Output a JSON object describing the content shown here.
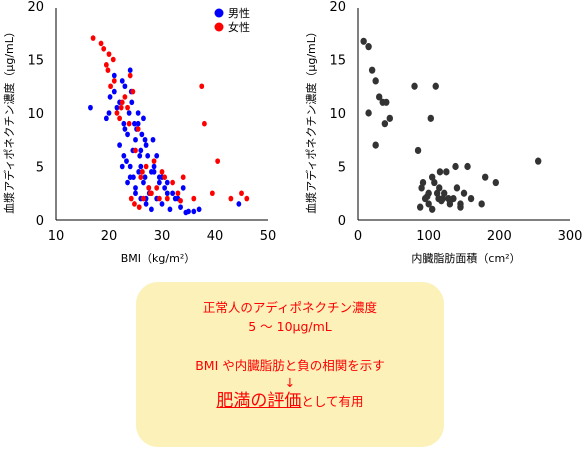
{
  "chart_data": [
    {
      "type": "scatter",
      "xlabel": "BMI（kg/m²）",
      "ylabel": "血漿アディポネクチン濃度（μg/mL）",
      "xlim": [
        10,
        50
      ],
      "ylim": [
        0,
        20
      ],
      "xticks": [
        10,
        20,
        30,
        40,
        50
      ],
      "yticks": [
        0,
        5,
        10,
        15,
        20
      ],
      "xtick_labels": [
        "10",
        "20",
        "30",
        "40",
        "50"
      ],
      "ytick_labels": [
        "0",
        "5",
        "10",
        "15",
        "20"
      ],
      "legend_position": "top-right",
      "series": [
        {
          "name": "男性",
          "color": "#0000ff",
          "x": [
            16.5,
            19.5,
            20.0,
            20.2,
            21.0,
            21.5,
            22.0,
            22.5,
            22.8,
            23.0,
            23.5,
            23.8,
            24.0,
            24.3,
            24.5,
            24.8,
            25.0,
            25.2,
            25.5,
            25.8,
            26.0,
            26.2,
            26.5,
            26.8,
            27.0,
            27.3,
            27.5,
            28.0,
            28.3,
            28.5,
            29.0,
            29.5,
            30.0,
            30.5,
            31.0,
            32.0,
            33.0,
            34.0,
            35.0,
            22.0,
            22.8,
            23.3,
            24.0,
            24.6,
            25.0,
            25.6,
            26.0,
            26.5,
            27.0,
            27.6,
            28.0,
            29.0,
            30.0,
            31.5,
            33.5,
            36.0,
            37.0,
            44.5,
            21.0,
            23.0,
            24.2,
            25.5,
            26.8,
            28.5,
            23.5,
            25.0,
            26.0,
            24.0,
            22.5,
            27.0,
            29.5,
            31.0,
            32.5,
            34.5
          ],
          "y": [
            10.5,
            9.5,
            10.0,
            11.5,
            12.0,
            10.5,
            11.0,
            13.0,
            9.0,
            12.5,
            8.0,
            10.0,
            14.0,
            11.0,
            6.5,
            9.0,
            7.5,
            8.5,
            10.0,
            6.0,
            5.0,
            8.0,
            9.5,
            4.0,
            7.0,
            6.0,
            3.0,
            4.5,
            7.5,
            5.0,
            6.0,
            3.5,
            4.0,
            3.0,
            3.5,
            2.5,
            2.0,
            3.0,
            0.8,
            7.0,
            6.0,
            5.5,
            5.0,
            4.0,
            3.0,
            4.5,
            2.0,
            3.5,
            1.5,
            2.5,
            1.0,
            2.0,
            1.5,
            1.0,
            1.2,
            0.8,
            1.0,
            1.5,
            13.5,
            8.5,
            12.0,
            9.0,
            7.5,
            4.5,
            3.5,
            2.5,
            6.5,
            4.0,
            5.0,
            2.0,
            4.0,
            2.5,
            2.0,
            0.7
          ]
        },
        {
          "name": "女性",
          "color": "#ff0000",
          "x": [
            17.0,
            18.5,
            19.0,
            19.5,
            20.0,
            20.3,
            21.0,
            21.5,
            22.0,
            22.5,
            23.0,
            23.5,
            24.0,
            24.5,
            25.0,
            25.5,
            26.0,
            26.5,
            27.0,
            27.5,
            28.0,
            28.5,
            29.0,
            30.0,
            31.0,
            32.0,
            33.0,
            34.0,
            36.0,
            37.5,
            38.0,
            39.5,
            40.5,
            43.0,
            45.0,
            46.0,
            19.8,
            20.8,
            22.3,
            23.8,
            24.8,
            26.3,
            27.8,
            29.5,
            30.5,
            33.5,
            24.2,
            25.7
          ],
          "y": [
            17.0,
            16.5,
            16.0,
            14.5,
            15.5,
            12.5,
            13.0,
            10.0,
            9.5,
            11.0,
            11.5,
            10.5,
            13.5,
            12.0,
            6.5,
            8.5,
            4.0,
            2.0,
            5.0,
            3.0,
            2.5,
            5.5,
            3.0,
            4.5,
            2.0,
            3.5,
            2.5,
            4.0,
            2.0,
            12.5,
            9.0,
            2.5,
            5.5,
            2.0,
            2.5,
            2.0,
            14.0,
            15.0,
            10.5,
            9.0,
            1.5,
            4.5,
            2.5,
            2.0,
            4.0,
            1.8,
            2.0,
            1.2
          ]
        }
      ]
    },
    {
      "type": "scatter",
      "xlabel": "内臓脂肪面積（cm²）",
      "ylabel": "血漿アディポネクチン濃度（μg/mL）",
      "xlim": [
        0,
        300
      ],
      "ylim": [
        0,
        20
      ],
      "xticks": [
        0,
        100,
        200,
        300
      ],
      "yticks": [
        0,
        5,
        10,
        15,
        20
      ],
      "xtick_labels": [
        "0",
        "100",
        "200",
        "300"
      ],
      "ytick_labels": [
        "0",
        "5",
        "10",
        "15",
        "20"
      ],
      "series": [
        {
          "name": "",
          "color": "#333333",
          "x": [
            8,
            15,
            20,
            25,
            30,
            35,
            38,
            40,
            45,
            15,
            25,
            80,
            85,
            90,
            95,
            100,
            103,
            105,
            108,
            110,
            112,
            114,
            116,
            118,
            120,
            122,
            125,
            128,
            130,
            135,
            138,
            140,
            145,
            150,
            155,
            160,
            175,
            180,
            195,
            255,
            100,
            115,
            130,
            145,
            88,
            92,
            98,
            105
          ],
          "y": [
            16.7,
            16.2,
            14.0,
            13.0,
            11.5,
            11.0,
            9.0,
            11.0,
            9.5,
            10.0,
            7.0,
            12.5,
            6.5,
            3.0,
            2.0,
            1.5,
            9.5,
            4.0,
            3.5,
            12.5,
            2.5,
            2.0,
            4.5,
            1.8,
            2.0,
            2.5,
            4.5,
            2.0,
            1.5,
            2.0,
            5.0,
            3.0,
            1.5,
            2.5,
            5.0,
            2.0,
            1.5,
            4.0,
            3.5,
            5.5,
            2.5,
            3.0,
            1.8,
            1.2,
            1.2,
            3.5,
            2.2,
            1.0
          ]
        }
      ]
    }
  ],
  "legend": {
    "male_label": "男性",
    "female_label": "女性",
    "male_color": "#0000ff",
    "female_color": "#ff0000"
  },
  "summary": {
    "line1": "正常人のアディポネクチン濃度",
    "line2": "5 ～ 10μg/mL",
    "line3": "BMI や内臓脂肪と負の相関を示す",
    "arrow": "↓",
    "line5_big": "肥満の評価",
    "line5_small": "として有用",
    "text_color": "#ff0000",
    "box_color": "#fbf1b9"
  }
}
